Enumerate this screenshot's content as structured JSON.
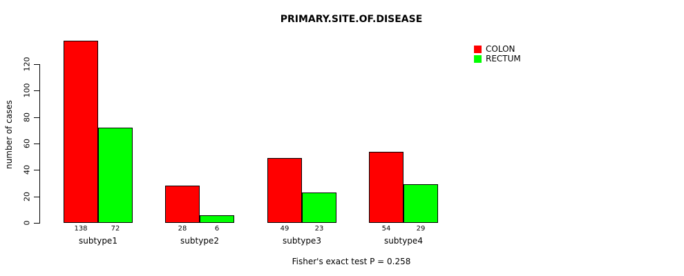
{
  "chart_data": {
    "type": "bar",
    "title": "PRIMARY.SITE.OF.DISEASE",
    "xlabel": "",
    "ylabel": "number of cases",
    "categories": [
      "subtype1",
      "subtype2",
      "subtype3",
      "subtype4"
    ],
    "series": [
      {
        "name": "COLON",
        "color": "#ff0000",
        "values": [
          138,
          28,
          49,
          54
        ]
      },
      {
        "name": "RECTUM",
        "color": "#00ff00",
        "values": [
          72,
          6,
          23,
          29
        ]
      }
    ],
    "bar_value_labels": [
      [
        "138",
        "28",
        "49",
        "54"
      ],
      [
        "72",
        "6",
        "23",
        "29"
      ]
    ],
    "yticks": [
      "0",
      "20",
      "40",
      "60",
      "80",
      "100",
      "120"
    ],
    "ylim": [
      0,
      140
    ],
    "grid": false,
    "legend_position": "top-right",
    "bar_border_color": "#000000",
    "note": "Fisher's exact test P = 0.258"
  }
}
